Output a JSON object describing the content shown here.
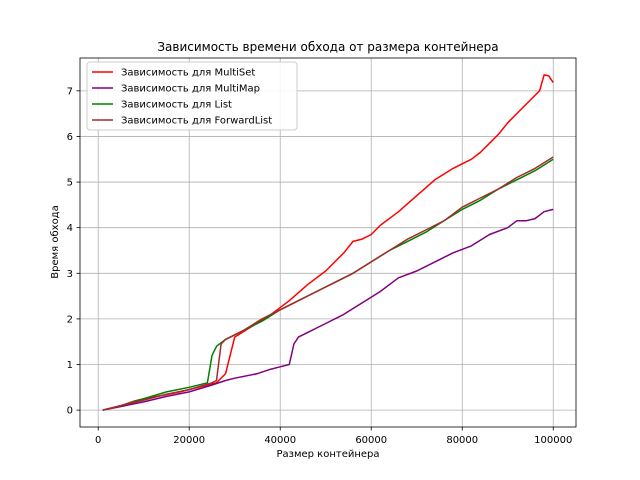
{
  "chart_data": {
    "type": "line",
    "title": "Зависимость времени обхода от размера контейнера",
    "xlabel": "Размер контейнера",
    "ylabel": "Время обхода",
    "xlim": [
      -4000,
      105000
    ],
    "ylim": [
      -0.37,
      7.72
    ],
    "xticks": [
      0,
      20000,
      40000,
      60000,
      80000,
      100000
    ],
    "yticks": [
      0,
      1,
      2,
      3,
      4,
      5,
      6,
      7
    ],
    "grid": true,
    "legend_position": "upper-left",
    "series": [
      {
        "name": "Зависимость для MultiSet",
        "color": "#ff0000",
        "x": [
          1000,
          5000,
          8000,
          10000,
          14000,
          18000,
          22000,
          26000,
          28000,
          30000,
          34000,
          38000,
          42000,
          46000,
          50000,
          54000,
          56000,
          58000,
          60000,
          62000,
          66000,
          70000,
          74000,
          78000,
          80000,
          82000,
          84000,
          86000,
          88000,
          90000,
          92000,
          94000,
          96000,
          97000,
          98000,
          99000,
          100000
        ],
        "y": [
          0.0,
          0.1,
          0.2,
          0.25,
          0.32,
          0.4,
          0.5,
          0.6,
          0.8,
          1.6,
          1.85,
          2.1,
          2.4,
          2.75,
          3.05,
          3.45,
          3.7,
          3.75,
          3.85,
          4.05,
          4.35,
          4.7,
          5.05,
          5.3,
          5.4,
          5.5,
          5.65,
          5.85,
          6.05,
          6.3,
          6.5,
          6.7,
          6.9,
          7.0,
          7.35,
          7.33,
          7.18
        ]
      },
      {
        "name": "Зависимость для MultiMap",
        "color": "#800080",
        "x": [
          1000,
          5000,
          10000,
          15000,
          20000,
          25000,
          28000,
          30000,
          35000,
          38000,
          40000,
          42000,
          43000,
          44000,
          46000,
          48000,
          50000,
          54000,
          58000,
          62000,
          66000,
          70000,
          74000,
          78000,
          82000,
          86000,
          90000,
          92000,
          94000,
          96000,
          98000,
          100000
        ],
        "y": [
          0.0,
          0.08,
          0.18,
          0.3,
          0.4,
          0.55,
          0.65,
          0.7,
          0.8,
          0.9,
          0.95,
          1.0,
          1.45,
          1.6,
          1.7,
          1.8,
          1.9,
          2.1,
          2.35,
          2.6,
          2.9,
          3.05,
          3.25,
          3.45,
          3.6,
          3.85,
          4.0,
          4.15,
          4.15,
          4.2,
          4.35,
          4.4
        ]
      },
      {
        "name": "Зависимость для List",
        "color": "#008000",
        "x": [
          1000,
          5000,
          10000,
          15000,
          20000,
          24000,
          25000,
          26000,
          28000,
          32000,
          36000,
          40000,
          44000,
          48000,
          52000,
          56000,
          60000,
          64000,
          68000,
          72000,
          76000,
          80000,
          84000,
          88000,
          92000,
          96000,
          100000
        ],
        "y": [
          0.0,
          0.1,
          0.25,
          0.4,
          0.5,
          0.6,
          1.2,
          1.4,
          1.55,
          1.75,
          1.95,
          2.2,
          2.4,
          2.6,
          2.8,
          3.0,
          3.25,
          3.5,
          3.7,
          3.9,
          4.15,
          4.4,
          4.6,
          4.85,
          5.05,
          5.25,
          5.5
        ]
      },
      {
        "name": "Зависимость для ForwardList",
        "color": "#a52a2a",
        "x": [
          1000,
          5000,
          10000,
          15000,
          20000,
          25000,
          26000,
          27000,
          28000,
          32000,
          36000,
          40000,
          44000,
          48000,
          52000,
          56000,
          60000,
          64000,
          68000,
          72000,
          76000,
          80000,
          84000,
          88000,
          92000,
          96000,
          100000
        ],
        "y": [
          0.0,
          0.1,
          0.22,
          0.35,
          0.45,
          0.6,
          0.65,
          1.45,
          1.55,
          1.75,
          2.0,
          2.2,
          2.4,
          2.6,
          2.8,
          3.0,
          3.25,
          3.5,
          3.75,
          3.95,
          4.15,
          4.45,
          4.65,
          4.85,
          5.1,
          5.3,
          5.55
        ]
      }
    ]
  }
}
